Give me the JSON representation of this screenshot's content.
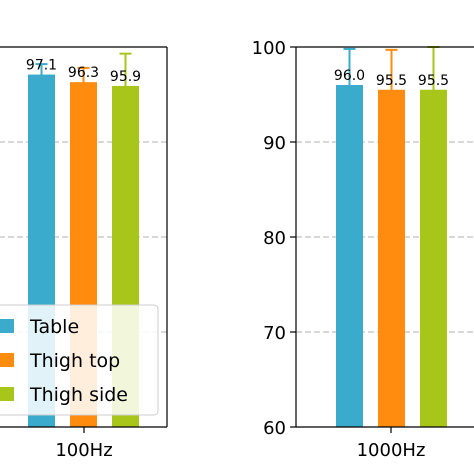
{
  "chart_data": [
    {
      "type": "bar",
      "categories": [
        "100Hz"
      ],
      "series": [
        {
          "name": "Table",
          "color": "#3aabcc",
          "values": [
            97.1
          ],
          "error": [
            1.1
          ],
          "labels": [
            "97.1"
          ]
        },
        {
          "name": "Thigh top",
          "color": "#ff8c0f",
          "values": [
            96.3
          ],
          "error": [
            1.5
          ],
          "labels": [
            "96.3"
          ]
        },
        {
          "name": "Thigh side",
          "color": "#a8c61a",
          "values": [
            95.9
          ],
          "error": [
            3.4
          ],
          "labels": [
            "95.9"
          ]
        }
      ],
      "ylim": [
        60,
        100
      ],
      "grid": true,
      "legend": "lower-left"
    },
    {
      "type": "bar",
      "categories": [
        "1000Hz"
      ],
      "yticks": [
        "60",
        "70",
        "80",
        "90",
        "100"
      ],
      "series": [
        {
          "name": "Table",
          "color": "#3aabcc",
          "values": [
            96.0
          ],
          "error": [
            3.8
          ],
          "labels": [
            "96.0"
          ]
        },
        {
          "name": "Thigh top",
          "color": "#ff8c0f",
          "values": [
            95.5
          ],
          "error": [
            4.2
          ],
          "labels": [
            "95.5"
          ]
        },
        {
          "name": "Thigh side",
          "color": "#a8c61a",
          "values": [
            95.5
          ],
          "error": [
            4.5
          ],
          "labels": [
            "95.5"
          ]
        }
      ],
      "ylim": [
        60,
        100
      ],
      "grid": true
    }
  ]
}
